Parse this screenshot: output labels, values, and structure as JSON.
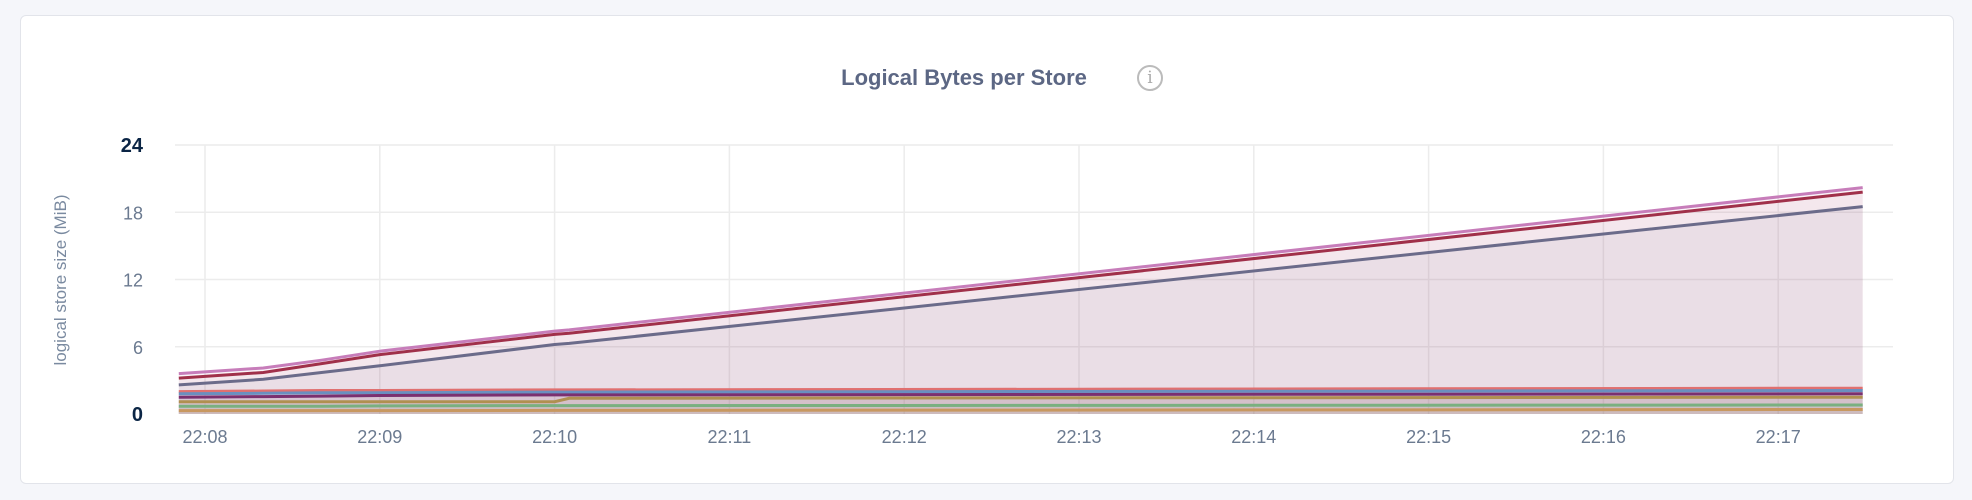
{
  "card": {
    "title": "Logical Bytes per Store",
    "info_icon": "info-circle-icon"
  },
  "chart_data": {
    "type": "area",
    "title": "Logical Bytes per Store",
    "xlabel": "",
    "ylabel": "logical store size (MiB)",
    "ylim": [
      0,
      24
    ],
    "yticks": [
      "0",
      "6",
      "12",
      "18",
      "24"
    ],
    "xticks": [
      "22:08",
      "22:09",
      "22:10",
      "22:11",
      "22:12",
      "22:13",
      "22:14",
      "22:15",
      "22:16",
      "22:17"
    ],
    "grid": true,
    "legend": "none",
    "x": [
      "22:07:51",
      "22:08:20",
      "22:08:40",
      "22:09:00",
      "22:10:00",
      "22:10:05",
      "22:17:29"
    ],
    "series": [
      {
        "color": "#c77dba",
        "values": [
          3.6,
          4.1,
          4.8,
          5.6,
          7.4,
          7.5,
          20.2
        ]
      },
      {
        "color": "#a0304a",
        "values": [
          3.2,
          3.7,
          4.5,
          5.3,
          7.1,
          7.2,
          19.8
        ]
      },
      {
        "color": "#6b6b8a",
        "values": [
          2.6,
          3.1,
          3.7,
          4.3,
          6.2,
          6.3,
          18.5
        ]
      },
      {
        "color": "#e07070",
        "values": [
          2.0,
          2.05,
          2.1,
          2.1,
          2.15,
          2.15,
          2.3
        ]
      },
      {
        "color": "#6a8fc0",
        "values": [
          1.8,
          1.85,
          1.9,
          1.9,
          1.95,
          1.95,
          2.1
        ]
      },
      {
        "color": "#7a3070",
        "values": [
          1.5,
          1.55,
          1.6,
          1.65,
          1.7,
          1.7,
          1.8
        ]
      },
      {
        "color": "#b09050",
        "values": [
          1.1,
          1.1,
          1.1,
          1.1,
          1.1,
          1.4,
          1.5
        ]
      },
      {
        "color": "#7ab080",
        "values": [
          0.7,
          0.7,
          0.7,
          0.72,
          0.75,
          0.75,
          0.8
        ]
      },
      {
        "color": "#c89860",
        "values": [
          0.3,
          0.3,
          0.3,
          0.3,
          0.32,
          0.32,
          0.4
        ]
      }
    ]
  }
}
